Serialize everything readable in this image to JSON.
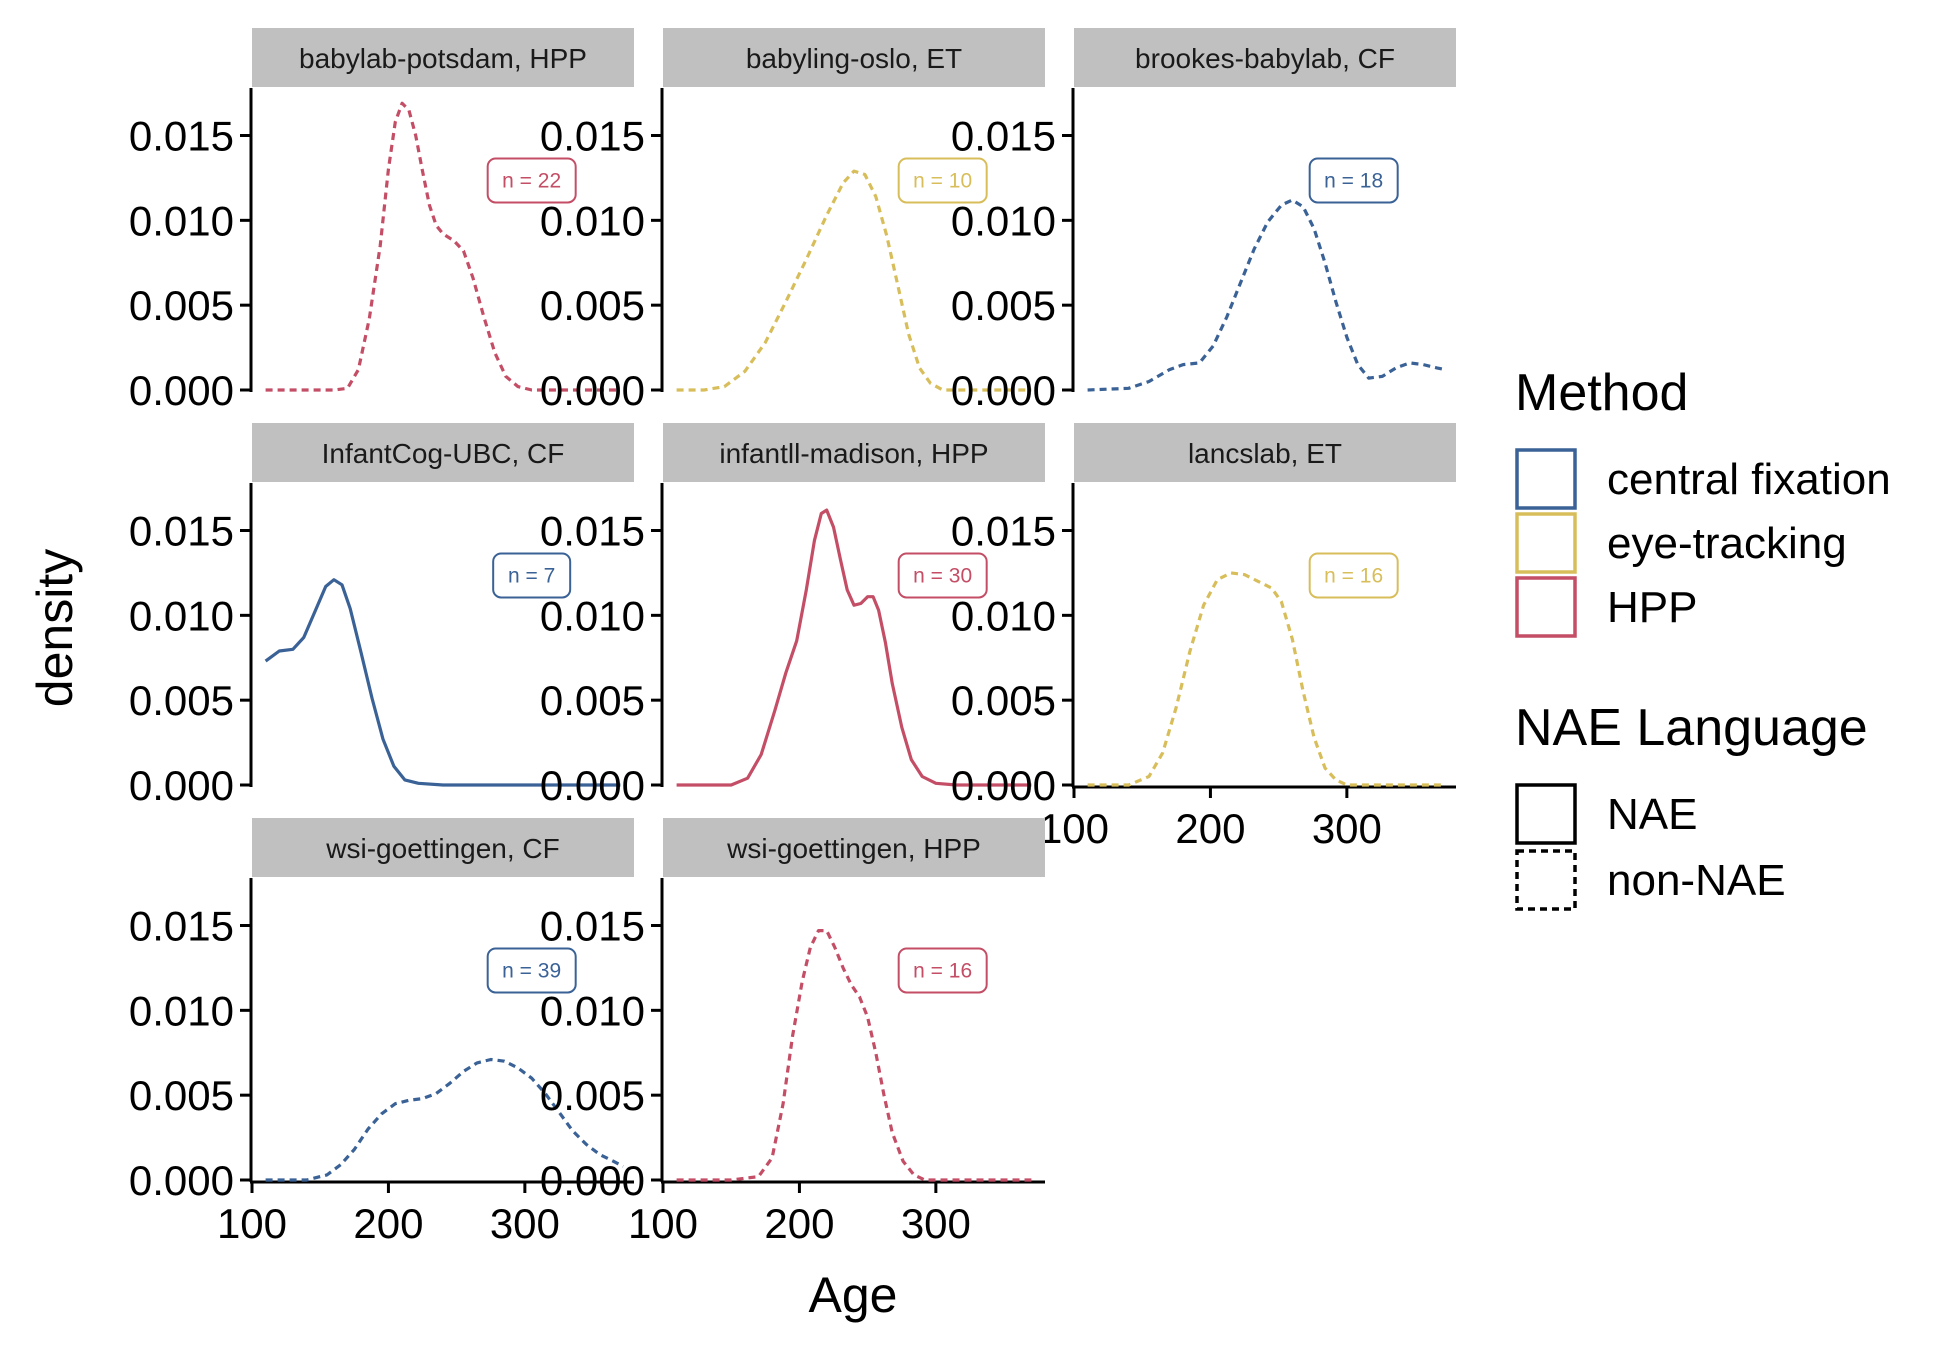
{
  "chart_data": {
    "type": "line",
    "subtype": "density-facets",
    "xlabel": "Age",
    "ylabel": "density",
    "xlim": [
      100,
      380
    ],
    "ylim": [
      0,
      0.0178
    ],
    "x_ticks": [
      100,
      200,
      300
    ],
    "x_tick_labels": [
      "100",
      "200",
      "300"
    ],
    "y_ticks": [
      0,
      0.005,
      0.01,
      0.015
    ],
    "y_tick_labels": [
      "0.000",
      "0.005",
      "0.010",
      "0.015"
    ],
    "grid": false,
    "legend_position": "right",
    "colors": {
      "central fixation": "#3a6296",
      "eye-tracking": "#d8be5b",
      "HPP": "#c34e66"
    },
    "legends": [
      {
        "title": "Method",
        "items": [
          {
            "label": "central fixation",
            "color": "#3a6296"
          },
          {
            "label": "eye-tracking",
            "color": "#d8be5b"
          },
          {
            "label": "HPP",
            "color": "#c34e66"
          }
        ]
      },
      {
        "title": "NAE Language",
        "items": [
          {
            "label": "NAE",
            "linetype": "solid"
          },
          {
            "label": "non-NAE",
            "linetype": "dashed"
          }
        ]
      }
    ],
    "panels": [
      {
        "title": "babylab-potsdam, HPP",
        "method": "HPP",
        "nae": "non-NAE",
        "label": "n = 22",
        "label_x": 305,
        "label_y": 0.01235,
        "points": [
          [
            110,
            0
          ],
          [
            160,
            0
          ],
          [
            170,
            0.0001
          ],
          [
            178,
            0.0012
          ],
          [
            186,
            0.0042
          ],
          [
            194,
            0.0085
          ],
          [
            200,
            0.013
          ],
          [
            205,
            0.0158
          ],
          [
            210,
            0.0169
          ],
          [
            215,
            0.0165
          ],
          [
            220,
            0.015
          ],
          [
            225,
            0.0129
          ],
          [
            230,
            0.0109
          ],
          [
            235,
            0.0097
          ],
          [
            240,
            0.0092
          ],
          [
            248,
            0.0088
          ],
          [
            255,
            0.0082
          ],
          [
            262,
            0.0066
          ],
          [
            270,
            0.0043
          ],
          [
            278,
            0.0022
          ],
          [
            286,
            0.0008
          ],
          [
            295,
            0.0002
          ],
          [
            305,
            0
          ],
          [
            370,
            0
          ]
        ]
      },
      {
        "title": "babyling-oslo, ET",
        "method": "eye-tracking",
        "nae": "non-NAE",
        "label": "n = 10",
        "label_x": 305,
        "label_y": 0.01235,
        "points": [
          [
            110,
            0
          ],
          [
            130,
            0
          ],
          [
            145,
            0.0002
          ],
          [
            160,
            0.0011
          ],
          [
            175,
            0.0028
          ],
          [
            190,
            0.0052
          ],
          [
            205,
            0.0077
          ],
          [
            220,
            0.0103
          ],
          [
            232,
            0.0122
          ],
          [
            240,
            0.0129
          ],
          [
            248,
            0.0127
          ],
          [
            256,
            0.0114
          ],
          [
            264,
            0.0091
          ],
          [
            272,
            0.0062
          ],
          [
            280,
            0.0033
          ],
          [
            288,
            0.0013
          ],
          [
            296,
            0.0004
          ],
          [
            305,
            0
          ],
          [
            370,
            0
          ]
        ]
      },
      {
        "title": "brookes-babylab, CF",
        "method": "central fixation",
        "nae": "non-NAE",
        "label": "n = 18",
        "label_x": 305,
        "label_y": 0.01235,
        "points": [
          [
            110,
            0
          ],
          [
            140,
            0.0001
          ],
          [
            155,
            0.0005
          ],
          [
            170,
            0.0012
          ],
          [
            180,
            0.0015
          ],
          [
            192,
            0.0016
          ],
          [
            202,
            0.0026
          ],
          [
            212,
            0.0043
          ],
          [
            222,
            0.0063
          ],
          [
            232,
            0.0083
          ],
          [
            242,
            0.0099
          ],
          [
            252,
            0.0109
          ],
          [
            260,
            0.0112
          ],
          [
            268,
            0.0108
          ],
          [
            276,
            0.0095
          ],
          [
            284,
            0.0075
          ],
          [
            292,
            0.0052
          ],
          [
            300,
            0.0031
          ],
          [
            308,
            0.0015
          ],
          [
            316,
            0.0007
          ],
          [
            326,
            0.0008
          ],
          [
            336,
            0.0013
          ],
          [
            346,
            0.0016
          ],
          [
            356,
            0.0015
          ],
          [
            366,
            0.0013
          ],
          [
            372,
            0.0012
          ]
        ]
      },
      {
        "title": "InfantCog-UBC, CF",
        "method": "central fixation",
        "nae": "NAE",
        "label": "n = 7",
        "label_x": 305,
        "label_y": 0.01235,
        "points": [
          [
            110,
            0.0073
          ],
          [
            120,
            0.0079
          ],
          [
            130,
            0.008
          ],
          [
            138,
            0.0087
          ],
          [
            146,
            0.0102
          ],
          [
            154,
            0.0117
          ],
          [
            160,
            0.0121
          ],
          [
            166,
            0.0118
          ],
          [
            172,
            0.0104
          ],
          [
            180,
            0.0078
          ],
          [
            188,
            0.0051
          ],
          [
            196,
            0.0027
          ],
          [
            204,
            0.0011
          ],
          [
            212,
            0.0003
          ],
          [
            222,
            0.0001
          ],
          [
            240,
            0
          ],
          [
            370,
            0
          ]
        ]
      },
      {
        "title": "infantll-madison, HPP",
        "method": "HPP",
        "nae": "NAE",
        "label": "n = 30",
        "label_x": 305,
        "label_y": 0.01235,
        "points": [
          [
            110,
            0
          ],
          [
            150,
            0
          ],
          [
            162,
            0.0004
          ],
          [
            172,
            0.0018
          ],
          [
            182,
            0.0044
          ],
          [
            190,
            0.0066
          ],
          [
            198,
            0.0085
          ],
          [
            205,
            0.0115
          ],
          [
            211,
            0.0144
          ],
          [
            216,
            0.016
          ],
          [
            220,
            0.0162
          ],
          [
            225,
            0.0152
          ],
          [
            230,
            0.0133
          ],
          [
            235,
            0.0115
          ],
          [
            240,
            0.0106
          ],
          [
            245,
            0.0107
          ],
          [
            250,
            0.0111
          ],
          [
            254,
            0.0111
          ],
          [
            258,
            0.0103
          ],
          [
            263,
            0.0084
          ],
          [
            268,
            0.006
          ],
          [
            275,
            0.0034
          ],
          [
            282,
            0.0015
          ],
          [
            290,
            0.0005
          ],
          [
            300,
            0.0001
          ],
          [
            315,
            0
          ],
          [
            370,
            0
          ]
        ]
      },
      {
        "title": "lancslab, ET",
        "method": "eye-tracking",
        "nae": "non-NAE",
        "label": "n = 16",
        "label_x": 305,
        "label_y": 0.01235,
        "points": [
          [
            110,
            0
          ],
          [
            140,
            0
          ],
          [
            155,
            0.0005
          ],
          [
            165,
            0.0019
          ],
          [
            175,
            0.0046
          ],
          [
            185,
            0.0079
          ],
          [
            195,
            0.0106
          ],
          [
            205,
            0.0121
          ],
          [
            215,
            0.0125
          ],
          [
            225,
            0.0124
          ],
          [
            235,
            0.012
          ],
          [
            245,
            0.0116
          ],
          [
            252,
            0.0108
          ],
          [
            260,
            0.0086
          ],
          [
            268,
            0.0055
          ],
          [
            276,
            0.0028
          ],
          [
            284,
            0.001
          ],
          [
            292,
            0.0003
          ],
          [
            300,
            0
          ],
          [
            370,
            0
          ]
        ]
      },
      {
        "title": "wsi-goettingen, CF",
        "method": "central fixation",
        "nae": "non-NAE",
        "label": "n = 39",
        "label_x": 305,
        "label_y": 0.01235,
        "points": [
          [
            110,
            0
          ],
          [
            140,
            0
          ],
          [
            155,
            0.0003
          ],
          [
            165,
            0.0009
          ],
          [
            175,
            0.0018
          ],
          [
            185,
            0.003
          ],
          [
            195,
            0.0039
          ],
          [
            205,
            0.0045
          ],
          [
            215,
            0.0047
          ],
          [
            225,
            0.0048
          ],
          [
            235,
            0.0051
          ],
          [
            245,
            0.0057
          ],
          [
            255,
            0.0064
          ],
          [
            265,
            0.0069
          ],
          [
            275,
            0.0071
          ],
          [
            285,
            0.007
          ],
          [
            295,
            0.0066
          ],
          [
            305,
            0.006
          ],
          [
            315,
            0.0051
          ],
          [
            325,
            0.004
          ],
          [
            335,
            0.0029
          ],
          [
            345,
            0.0021
          ],
          [
            355,
            0.0015
          ],
          [
            365,
            0.0011
          ],
          [
            372,
            0.0008
          ]
        ]
      },
      {
        "title": "wsi-goettingen, HPP",
        "method": "HPP",
        "nae": "non-NAE",
        "label": "n = 16",
        "label_x": 305,
        "label_y": 0.01235,
        "points": [
          [
            110,
            0
          ],
          [
            150,
            0
          ],
          [
            170,
            0.0002
          ],
          [
            180,
            0.0013
          ],
          [
            188,
            0.0045
          ],
          [
            195,
            0.0085
          ],
          [
            202,
            0.0117
          ],
          [
            208,
            0.0137
          ],
          [
            214,
            0.0147
          ],
          [
            220,
            0.0147
          ],
          [
            226,
            0.0137
          ],
          [
            232,
            0.0125
          ],
          [
            238,
            0.0115
          ],
          [
            244,
            0.0108
          ],
          [
            250,
            0.0096
          ],
          [
            256,
            0.0075
          ],
          [
            262,
            0.005
          ],
          [
            268,
            0.0028
          ],
          [
            276,
            0.0011
          ],
          [
            284,
            0.0003
          ],
          [
            292,
            0
          ],
          [
            370,
            0
          ]
        ]
      }
    ]
  }
}
